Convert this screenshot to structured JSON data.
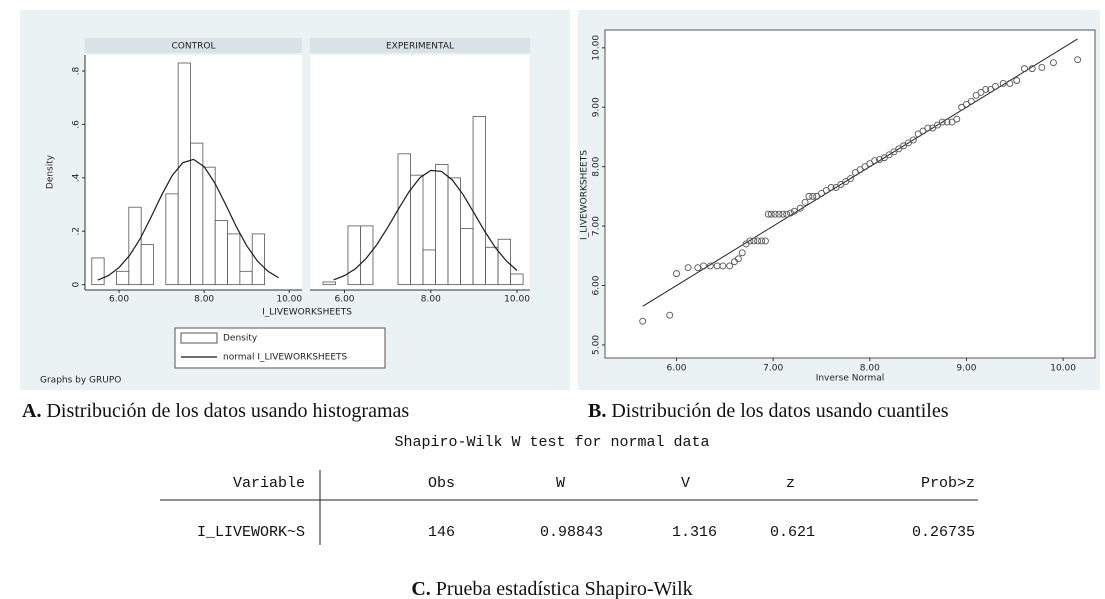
{
  "chart_data": [
    {
      "type": "histogram",
      "ylabel": "Density",
      "xlabel": "I_LIVEWORKSHEETS",
      "xlim": [
        5.2,
        10.3
      ],
      "ylim": [
        -0.02,
        0.86
      ],
      "xticks": [
        {
          "value": 6,
          "label": "6.00"
        },
        {
          "value": 8,
          "label": "8.00"
        },
        {
          "value": 10,
          "label": "10.00"
        }
      ],
      "yticks": [
        0,
        {
          "value": 0.2,
          "label": ".2"
        },
        {
          "value": 0.4,
          "label": ".4"
        },
        {
          "value": 0.6,
          "label": ".6"
        },
        {
          "value": 0.8,
          "label": ".8"
        }
      ],
      "note": "Graphs by GRUPO",
      "legend": "bottom",
      "bar_name": "Density",
      "bar_color": "#ffffff",
      "edge_color": "#555555",
      "curve_name": "normal I_LIVEWORKSHEETS",
      "curve_color": "#1a1a1a",
      "panels": [
        {
          "title": "CONTROL",
          "bins": [
            5.36,
            5.65,
            5.94,
            6.23,
            6.52,
            6.81,
            7.1,
            7.39,
            7.68,
            7.97,
            8.26,
            8.55,
            8.84,
            9.13,
            9.42
          ],
          "values": [
            0.1,
            0,
            0.05,
            0.29,
            0.15,
            0,
            0.34,
            0.83,
            0.53,
            0.44,
            0.24,
            0.19,
            0.05,
            0.19
          ],
          "curve": {
            "x": [
              5.5,
              5.75,
              6.0,
              6.25,
              6.5,
              6.75,
              7.0,
              7.25,
              7.5,
              7.75,
              8.0,
              8.25,
              8.5,
              8.75,
              9.0,
              9.25,
              9.5,
              9.75
            ],
            "values": [
              0.017,
              0.034,
              0.064,
              0.11,
              0.173,
              0.252,
              0.335,
              0.409,
              0.457,
              0.469,
              0.442,
              0.381,
              0.302,
              0.219,
              0.146,
              0.089,
              0.05,
              0.026
            ]
          }
        },
        {
          "title": "EXPERIMENTAL",
          "bins": [
            5.5,
            5.79,
            6.08,
            6.37,
            6.66,
            6.95,
            7.24,
            7.53,
            7.82,
            8.11,
            8.4,
            8.69,
            8.98,
            9.27,
            9.56,
            9.85,
            10.14
          ],
          "values": [
            0.01,
            0,
            0.22,
            0.22,
            0,
            0,
            0.49,
            0.41,
            0.13,
            0.45,
            0.4,
            0.21,
            0.63,
            0.14,
            0.17,
            0.04
          ],
          "curve": {
            "x": [
              5.75,
              6.0,
              6.25,
              6.5,
              6.75,
              7.0,
              7.25,
              7.5,
              7.75,
              8.0,
              8.25,
              8.5,
              8.75,
              9.0,
              9.25,
              9.5,
              9.75,
              10.0
            ],
            "values": [
              0.018,
              0.034,
              0.059,
              0.098,
              0.15,
              0.214,
              0.283,
              0.349,
              0.401,
              0.428,
              0.424,
              0.392,
              0.337,
              0.269,
              0.2,
              0.138,
              0.089,
              0.053
            ]
          }
        }
      ]
    },
    {
      "type": "scatter",
      "xlabel": "Inverse Normal",
      "ylabel": "I_LIVEWORKSHEETS",
      "xlim": [
        5.26,
        10.33
      ],
      "ylim": [
        4.78,
        10.3
      ],
      "xticks": [
        {
          "value": 6,
          "label": "6.00"
        },
        {
          "value": 7,
          "label": "7.00"
        },
        {
          "value": 8,
          "label": "8.00"
        },
        {
          "value": 9,
          "label": "9.00"
        },
        {
          "value": 10,
          "label": "10.00"
        }
      ],
      "yticks": [
        {
          "value": 5,
          "label": "5.00"
        },
        {
          "value": 6,
          "label": "6.00"
        },
        {
          "value": 7,
          "label": "7.00"
        },
        {
          "value": 8,
          "label": "8.00"
        },
        {
          "value": 9,
          "label": "9.00"
        },
        {
          "value": 10,
          "label": "10.00"
        }
      ],
      "marker_color": "#555555",
      "x": [
        5.65,
        5.93,
        6.0,
        6.12,
        6.22,
        6.28,
        6.35,
        6.42,
        6.48,
        6.55,
        6.6,
        6.64,
        6.68,
        6.72,
        6.76,
        6.8,
        6.84,
        6.88,
        6.92,
        6.95,
        6.98,
        7.02,
        7.06,
        7.1,
        7.14,
        7.18,
        7.22,
        7.28,
        7.33,
        7.37,
        7.41,
        7.45,
        7.5,
        7.55,
        7.6,
        7.65,
        7.7,
        7.75,
        7.8,
        7.85,
        7.9,
        7.95,
        8.0,
        8.05,
        8.1,
        8.15,
        8.2,
        8.25,
        8.3,
        8.35,
        8.4,
        8.45,
        8.5,
        8.55,
        8.6,
        8.65,
        8.7,
        8.75,
        8.8,
        8.85,
        8.9,
        8.95,
        9.0,
        9.05,
        9.1,
        9.15,
        9.2,
        9.25,
        9.3,
        9.38,
        9.45,
        9.52,
        9.6,
        9.68,
        9.78,
        9.9,
        10.15
      ],
      "values": [
        5.4,
        5.5,
        6.2,
        6.3,
        6.3,
        6.33,
        6.33,
        6.33,
        6.33,
        6.33,
        6.4,
        6.45,
        6.55,
        6.7,
        6.75,
        6.75,
        6.75,
        6.75,
        6.75,
        7.2,
        7.2,
        7.2,
        7.2,
        7.2,
        7.2,
        7.22,
        7.25,
        7.3,
        7.4,
        7.5,
        7.5,
        7.5,
        7.55,
        7.6,
        7.65,
        7.65,
        7.7,
        7.75,
        7.8,
        7.9,
        7.95,
        8.0,
        8.05,
        8.1,
        8.12,
        8.15,
        8.2,
        8.25,
        8.3,
        8.35,
        8.4,
        8.45,
        8.55,
        8.6,
        8.65,
        8.65,
        8.7,
        8.75,
        8.75,
        8.75,
        8.8,
        9.0,
        9.05,
        9.1,
        9.2,
        9.25,
        9.3,
        9.3,
        9.35,
        9.4,
        9.4,
        9.45,
        9.65,
        9.65,
        9.67,
        9.75,
        9.8
      ],
      "reference_line": {
        "x": [
          5.65,
          10.15
        ],
        "values": [
          5.65,
          10.15
        ],
        "color": "#222222"
      }
    }
  ],
  "captions": [
    {
      "label": "A.",
      "text": "Distribución de los datos usando histogramas"
    },
    {
      "label": "B.",
      "text": "Distribución de los datos usando cuantiles"
    },
    {
      "label": "C.",
      "text": "Prueba estadística Shapiro-Wilk"
    }
  ],
  "table": {
    "title": "Shapiro-Wilk W test for normal data",
    "header": [
      "Variable",
      "Obs",
      "W",
      "V",
      "z",
      "Prob>z"
    ],
    "rows": [
      [
        "I_LIVEWORK~S",
        146,
        0.98843,
        1.316,
        0.621,
        0.26735
      ]
    ]
  }
}
